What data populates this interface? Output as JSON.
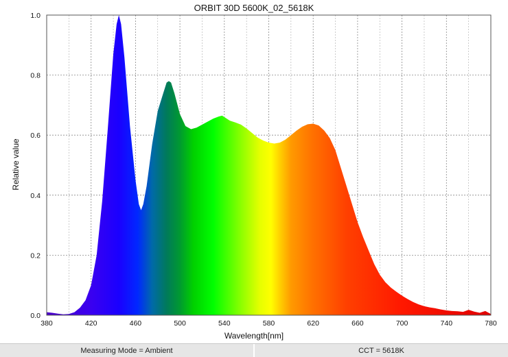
{
  "chart_data": {
    "type": "area",
    "title": "ORBIT 30D 5600K_02_5618K",
    "xlabel": "Wavelength[nm]",
    "ylabel": "Relative value",
    "xlim": [
      380,
      780
    ],
    "ylim": [
      0,
      1.0
    ],
    "x_ticks": [
      380,
      420,
      460,
      500,
      540,
      580,
      620,
      660,
      700,
      740,
      780
    ],
    "x_tick_labels": [
      "380",
      "420",
      "460",
      "500",
      "540",
      "580",
      "620",
      "660",
      "700",
      "740",
      "780"
    ],
    "y_ticks": [
      0,
      0.2,
      0.4,
      0.6,
      0.8,
      1.0
    ],
    "y_tick_labels": [
      "0.0",
      "0.2",
      "0.4",
      "0.6",
      "0.8",
      "1.0"
    ],
    "grid": true,
    "fill": "spectrum",
    "x": [
      380,
      385,
      390,
      395,
      400,
      405,
      410,
      415,
      420,
      425,
      430,
      435,
      440,
      443,
      445,
      447,
      450,
      455,
      460,
      463,
      465,
      467,
      470,
      475,
      480,
      485,
      488,
      490,
      492,
      495,
      500,
      505,
      510,
      515,
      520,
      525,
      530,
      535,
      538,
      540,
      545,
      550,
      555,
      560,
      565,
      570,
      575,
      580,
      585,
      590,
      595,
      600,
      605,
      610,
      615,
      620,
      625,
      630,
      635,
      640,
      645,
      650,
      655,
      660,
      665,
      670,
      675,
      680,
      685,
      690,
      695,
      700,
      705,
      710,
      715,
      720,
      725,
      730,
      735,
      740,
      745,
      750,
      755,
      760,
      765,
      770,
      775,
      780
    ],
    "y": [
      0.01,
      0.008,
      0.005,
      0.003,
      0.004,
      0.01,
      0.025,
      0.05,
      0.1,
      0.2,
      0.38,
      0.62,
      0.87,
      0.97,
      1.0,
      0.97,
      0.86,
      0.63,
      0.45,
      0.37,
      0.35,
      0.37,
      0.43,
      0.57,
      0.68,
      0.74,
      0.775,
      0.78,
      0.775,
      0.74,
      0.67,
      0.63,
      0.62,
      0.625,
      0.635,
      0.645,
      0.655,
      0.662,
      0.665,
      0.66,
      0.648,
      0.642,
      0.635,
      0.622,
      0.607,
      0.592,
      0.582,
      0.575,
      0.572,
      0.575,
      0.585,
      0.6,
      0.615,
      0.628,
      0.636,
      0.638,
      0.632,
      0.615,
      0.59,
      0.55,
      0.49,
      0.43,
      0.37,
      0.31,
      0.26,
      0.215,
      0.17,
      0.135,
      0.11,
      0.092,
      0.078,
      0.065,
      0.054,
      0.044,
      0.036,
      0.03,
      0.026,
      0.023,
      0.019,
      0.016,
      0.014,
      0.013,
      0.011,
      0.018,
      0.012,
      0.008,
      0.014,
      0.004
    ]
  },
  "footer": {
    "measuring_mode": "Measuring Mode = Ambient",
    "cct": "CCT = 5618K"
  }
}
